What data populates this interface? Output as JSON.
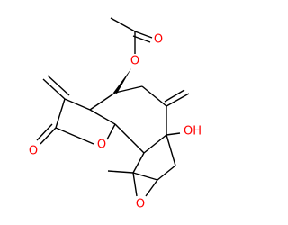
{
  "atoms": [
    {
      "label": "O"
    },
    {
      "label": "O"
    },
    {
      "label": "OH"
    },
    {
      "label": "O"
    },
    {
      "label": "O"
    },
    {
      "label": "O"
    }
  ]
}
